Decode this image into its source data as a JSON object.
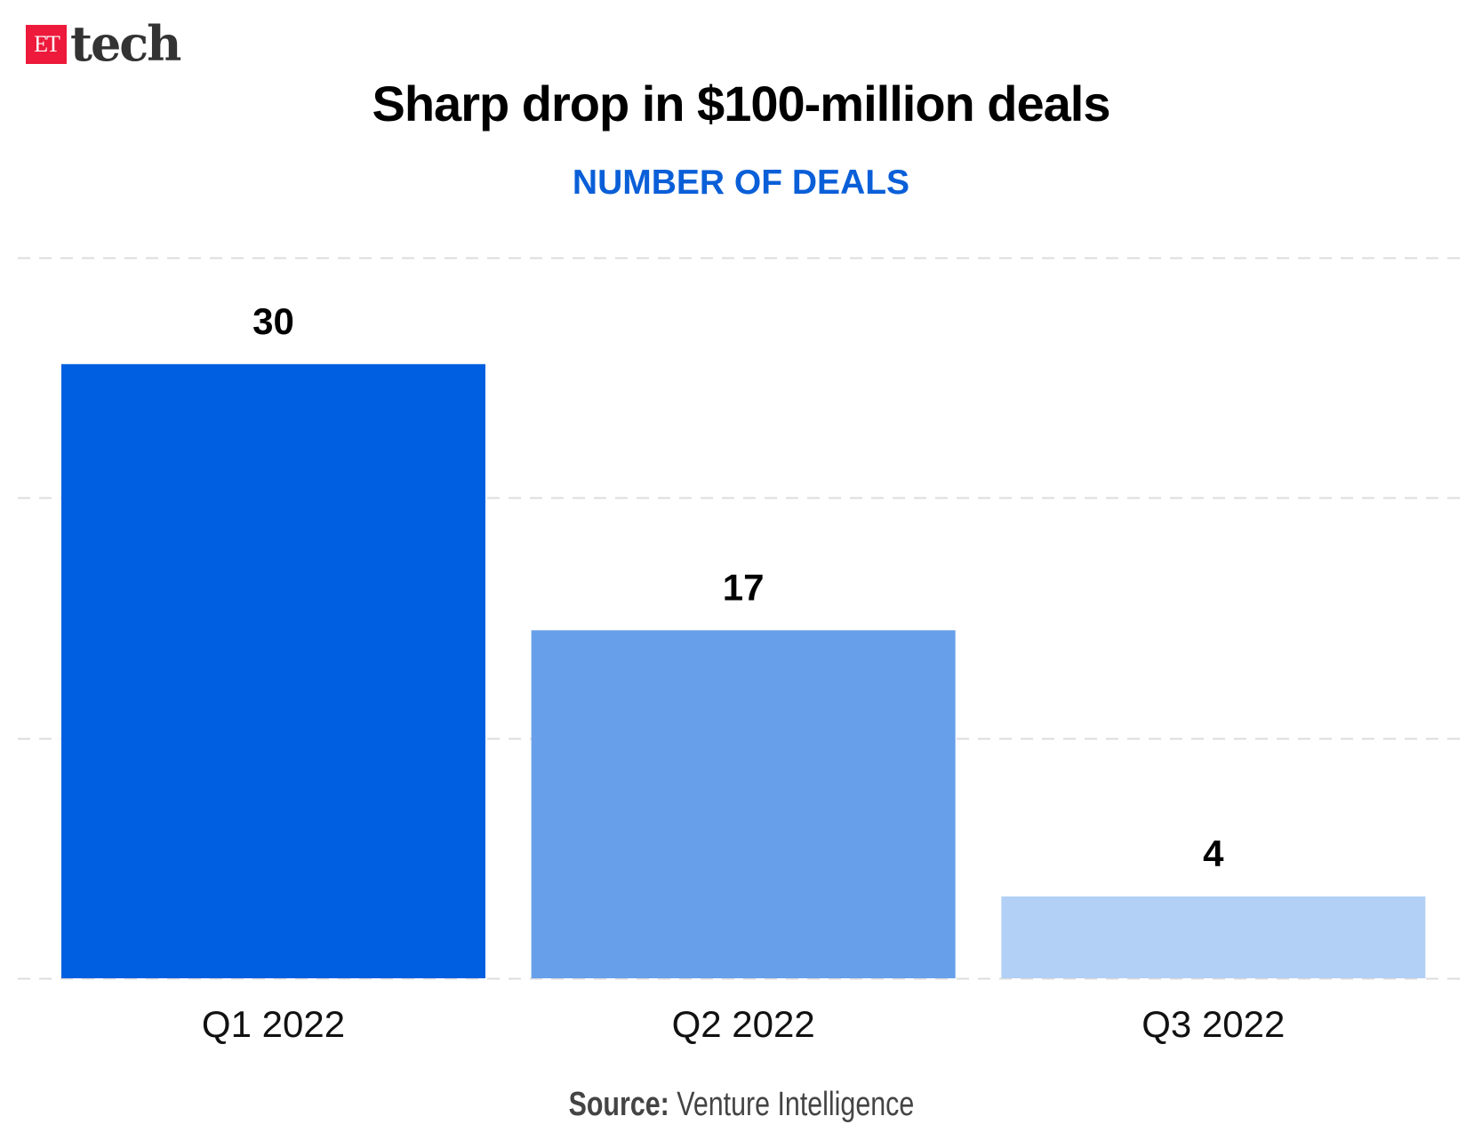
{
  "logo": {
    "mark": "ET",
    "text": "tech",
    "brand_color": "#ED1A3B"
  },
  "chart_data": {
    "type": "bar",
    "title": "Sharp drop in $100-million deals",
    "subtitle": "NUMBER OF DEALS",
    "categories": [
      "Q1 2022",
      "Q2 2022",
      "Q3 2022"
    ],
    "values": [
      30,
      17,
      4
    ],
    "data_labels": [
      "30",
      "17",
      "4"
    ],
    "colors": [
      "#005FE0",
      "#689FEA",
      "#B2D0F5"
    ],
    "ylim": [
      0,
      35.2
    ],
    "grid": true,
    "xlabel": "",
    "ylabel": ""
  },
  "source": {
    "label": "Source:",
    "text": "Venture Intelligence"
  }
}
